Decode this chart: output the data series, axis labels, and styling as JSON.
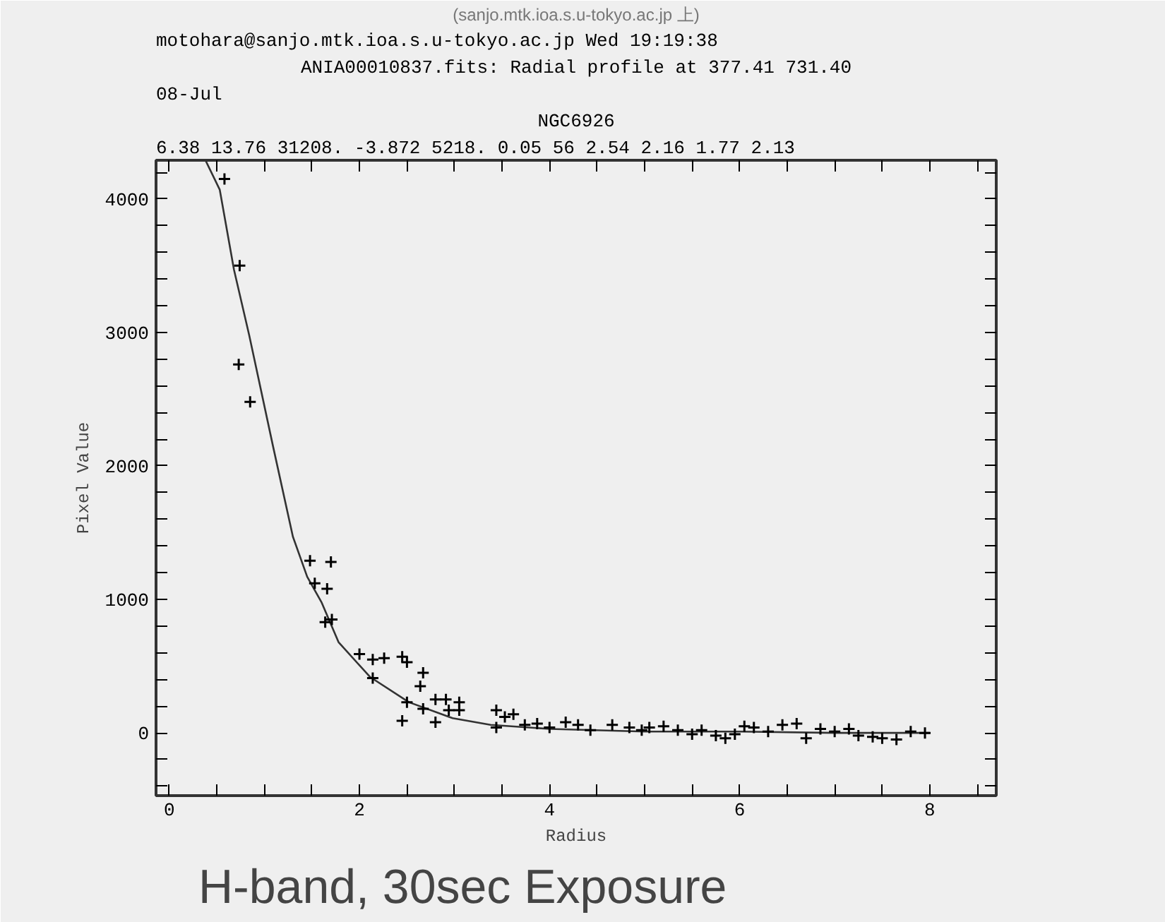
{
  "chart_data": {
    "type": "scatter",
    "title": "ANIA00010837.fits: Radial profile at 377.41 731.40",
    "subtitle": "NGC6926",
    "xlabel": "Radius",
    "ylabel": "Pixel Value",
    "annotations": [
      "(sanjo.mtk.ioa.s.u-tokyo.ac.jp 上)",
      "motohara@sanjo.mtk.ioa.s.u-tokyo.ac.jp Wed 19:19:38",
      "08-Jul",
      "6.38 13.76 31208. -3.872 5218. 0.05 56 2.54 2.16 1.77 2.13",
      "H-band, 30sec Exposure"
    ],
    "xlim": [
      -0.14,
      8.7
    ],
    "ylim": [
      -470,
      4290
    ],
    "xticks": [
      0,
      {
        "value": 0.5,
        "label": null
      },
      2,
      {
        "value": 1,
        "label": null
      },
      {
        "value": 1.5,
        "label": null
      },
      {
        "value": 2.5,
        "label": null
      },
      {
        "value": 3,
        "label": null
      },
      {
        "value": 3.5,
        "label": null
      },
      4,
      {
        "value": 4.5,
        "label": null
      },
      {
        "value": 5,
        "label": null
      },
      {
        "value": 5.5,
        "label": null
      },
      6,
      {
        "value": 6.5,
        "label": null
      },
      {
        "value": 7,
        "label": null
      },
      {
        "value": 7.5,
        "label": null
      },
      8,
      {
        "value": 8.5,
        "label": null
      }
    ],
    "yticks": [
      {
        "value": -400,
        "label": null
      },
      {
        "value": -200,
        "label": null
      },
      0,
      {
        "value": 200,
        "label": null
      },
      {
        "value": 400,
        "label": null
      },
      {
        "value": 600,
        "label": null
      },
      {
        "value": 800,
        "label": null
      },
      1000,
      {
        "value": 1200,
        "label": null
      },
      {
        "value": 1400,
        "label": null
      },
      {
        "value": 1600,
        "label": null
      },
      {
        "value": 1800,
        "label": null
      },
      2000,
      {
        "value": 2200,
        "label": null
      },
      {
        "value": 2400,
        "label": null
      },
      {
        "value": 2600,
        "label": null
      },
      {
        "value": 2800,
        "label": null
      },
      3000,
      {
        "value": 3200,
        "label": null
      },
      {
        "value": 3400,
        "label": null
      },
      {
        "value": 3600,
        "label": null
      },
      {
        "value": 3800,
        "label": null
      },
      4000,
      {
        "value": 4200,
        "label": null
      }
    ],
    "series": [
      {
        "marker": "cross",
        "color": "#000000",
        "x": [
          0.58,
          0.74,
          0.73,
          0.85,
          1.48,
          1.7,
          1.53,
          1.66,
          1.71,
          1.64,
          2.0,
          2.14,
          2.26,
          2.45,
          2.5,
          2.67,
          2.64,
          2.14,
          2.5,
          2.45,
          2.67,
          2.8,
          2.8,
          2.91,
          3.05,
          2.94,
          3.05,
          3.44,
          3.44,
          3.53,
          3.62,
          3.74,
          3.87,
          4.0,
          4.17,
          4.3,
          4.43,
          4.66,
          4.84,
          4.97,
          5.05,
          5.2,
          5.35,
          5.5,
          5.6,
          5.75,
          5.85,
          5.95,
          6.05,
          6.15,
          6.3,
          6.45,
          6.6,
          6.7,
          6.85,
          7.0,
          7.15,
          7.25,
          7.4,
          7.5,
          7.65,
          7.8,
          7.95
        ],
        "values": [
          4150,
          3500,
          2760,
          2480,
          1290,
          1280,
          1120,
          1080,
          850,
          830,
          590,
          550,
          560,
          570,
          530,
          450,
          350,
          410,
          230,
          90,
          180,
          250,
          80,
          250,
          230,
          170,
          170,
          170,
          40,
          120,
          140,
          60,
          70,
          40,
          80,
          60,
          20,
          60,
          40,
          20,
          40,
          50,
          20,
          -10,
          20,
          -20,
          -40,
          -10,
          50,
          40,
          10,
          60,
          70,
          -40,
          30,
          10,
          30,
          -20,
          -30,
          -40,
          -50,
          10,
          0
        ]
      },
      {
        "type": "line",
        "marker": "none",
        "color": "#333333",
        "x": [
          0.38,
          0.53,
          0.68,
          0.84,
          1.09,
          1.3,
          1.45,
          1.6,
          1.78,
          2.11,
          2.52,
          2.98,
          3.38,
          4.0,
          5.0,
          6.0,
          7.0,
          8.0
        ],
        "values": [
          4290,
          4070,
          3470,
          2980,
          2150,
          1470,
          1170,
          980,
          680,
          420,
          230,
          110,
          60,
          30,
          10,
          10,
          0,
          0
        ]
      }
    ]
  }
}
